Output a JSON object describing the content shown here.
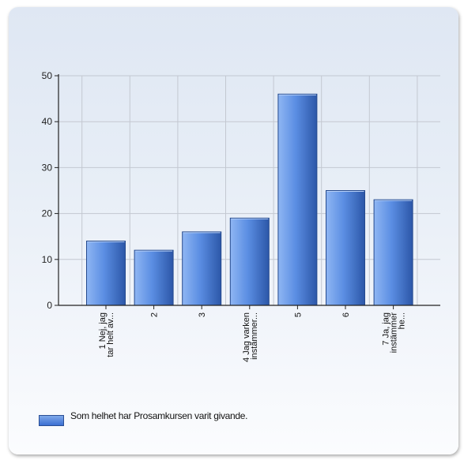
{
  "chart_data": {
    "type": "bar",
    "categories": [
      "1 Nej, jag tar helt av...",
      "2",
      "3",
      "4 Jag varken instämmer...",
      "5",
      "6",
      "7 Ja, jag instämmer he..."
    ],
    "category_label_lines": [
      [
        "1 Nej, jag",
        "tar helt av..."
      ],
      [
        "2"
      ],
      [
        "3"
      ],
      [
        "4 Jag varken",
        "instämmer..."
      ],
      [
        "5"
      ],
      [
        "6"
      ],
      [
        "7 Ja, jag",
        "instämmer",
        "he..."
      ]
    ],
    "series": [
      {
        "name": "Som helhet har Prosamkursen varit givande.",
        "values": [
          14,
          12,
          16,
          19,
          46,
          25,
          23
        ]
      }
    ],
    "ylim": [
      0,
      50
    ],
    "yticks": [
      "0",
      "10",
      "20",
      "30",
      "40",
      "50"
    ],
    "grid": true,
    "legend": "bottom-left",
    "bar_color": "#4a7fdc"
  }
}
